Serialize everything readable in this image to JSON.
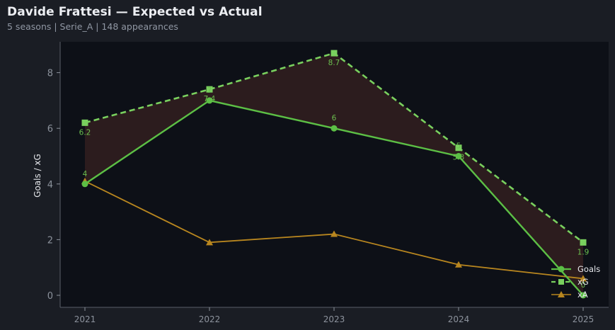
{
  "header": {
    "title": "Davide Frattesi — Expected vs Actual",
    "subtitle": "5 seasons | Serie_A | 148 appearances"
  },
  "colors": {
    "background": "#1a1d24",
    "plot_bg": "#0d1017",
    "goals": "#5cbf45",
    "xg": "#79d05e",
    "xa": "#b8861f",
    "fill_gap": "#2e1d1f"
  },
  "chart_data": {
    "type": "line",
    "title": "Davide Frattesi — Expected vs Actual",
    "subtitle": "5 seasons | Serie_A | 148 appearances",
    "xlabel": "",
    "ylabel": "Goals / xG",
    "categories": [
      "2021",
      "2022",
      "2023",
      "2024",
      "2025"
    ],
    "ylim": [
      -0.4,
      9.0
    ],
    "yticks": [
      "0",
      "2",
      "4",
      "6",
      "8"
    ],
    "grid": false,
    "legend_position": "lower right",
    "series": [
      {
        "name": "Goals",
        "marker": "circle",
        "style": "solid",
        "values": [
          4,
          7,
          6,
          5,
          0
        ],
        "labels": [
          "4",
          "7",
          "6",
          "5",
          "0"
        ]
      },
      {
        "name": "xG",
        "marker": "square",
        "style": "dashed",
        "values": [
          6.2,
          7.4,
          8.7,
          5.3,
          1.9
        ],
        "labels": [
          "6.2",
          "7.4",
          "8.7",
          "5.3",
          "1.9"
        ]
      },
      {
        "name": "xA",
        "marker": "triangle",
        "style": "solid",
        "values": [
          4.1,
          1.9,
          2.2,
          1.1,
          0.6
        ]
      }
    ],
    "annotations": "shaded region between Goals and xG"
  },
  "legend": {
    "items": [
      {
        "label": "Goals"
      },
      {
        "label": "xG"
      },
      {
        "label": "xA"
      }
    ]
  }
}
